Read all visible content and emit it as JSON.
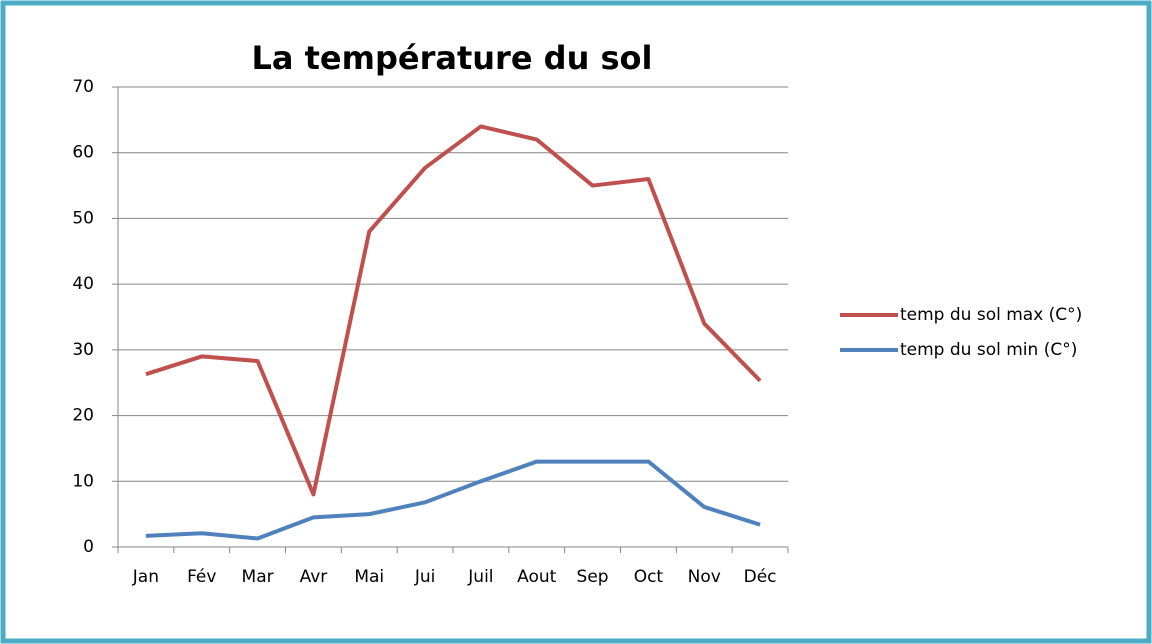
{
  "chart_data": {
    "type": "line",
    "title": "La température du sol",
    "categories": [
      "Jan",
      "Fév",
      "Mar",
      "Avr",
      "Mai",
      "Jui",
      "Juil",
      "Aout",
      "Sep",
      "Oct",
      "Nov",
      "Déc"
    ],
    "series": [
      {
        "name": "temp du sol max (C°)",
        "color": "#c0504d",
        "values": [
          26.3,
          29,
          28.3,
          8,
          48,
          57.7,
          64,
          62,
          55,
          56,
          34,
          25.3
        ]
      },
      {
        "name": "temp du sol min (C°)",
        "color": "#4f81bd",
        "values": [
          1.7,
          2.1,
          1.3,
          4.5,
          5,
          6.8,
          10,
          13,
          13,
          13,
          6.1,
          3.4
        ]
      }
    ],
    "ylim": [
      0,
      70
    ],
    "yticks": [
      0,
      10,
      20,
      30,
      40,
      50,
      60,
      70
    ],
    "grid": true,
    "legend": "right"
  }
}
